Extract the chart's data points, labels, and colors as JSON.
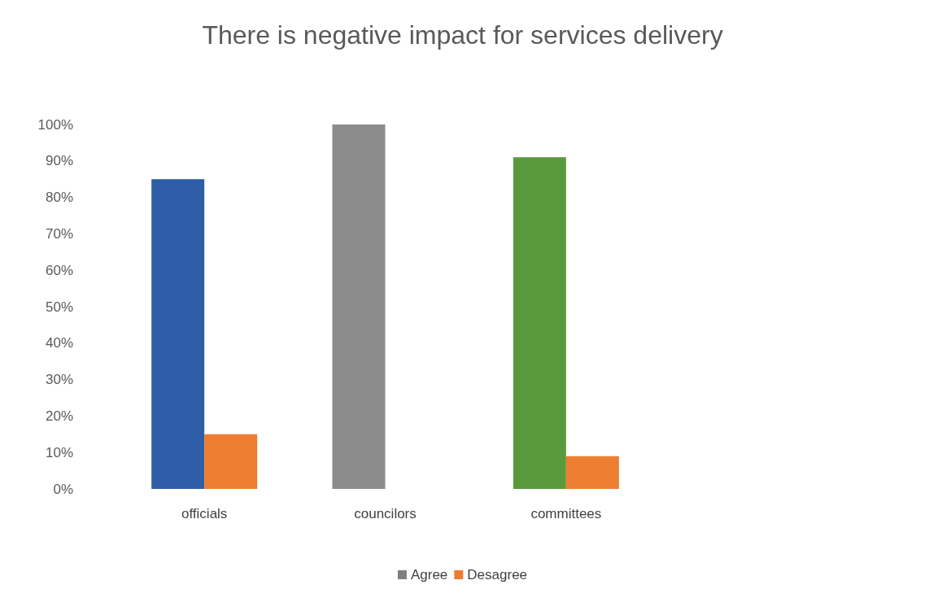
{
  "chart_data": {
    "type": "bar",
    "title": "There is negative impact for services delivery",
    "categories": [
      "officials",
      "councilors",
      "committees"
    ],
    "series": [
      {
        "name": "Agree",
        "color": "#7f7f7f",
        "colors": [
          "#2e5ea8",
          "#8c8c8c",
          "#5a9a3c"
        ],
        "values": [
          85,
          100,
          91
        ]
      },
      {
        "name": "Desagree",
        "color": "#ed7d31",
        "values": [
          15,
          0,
          9
        ]
      }
    ],
    "ylim": [
      0,
      100
    ],
    "yticks": [
      {
        "value": 0,
        "label": "0%"
      },
      {
        "value": 10,
        "label": "10%"
      },
      {
        "value": 20,
        "label": "20%"
      },
      {
        "value": 30,
        "label": "30%"
      },
      {
        "value": 40,
        "label": "40%"
      },
      {
        "value": 50,
        "label": "50%"
      },
      {
        "value": 60,
        "label": "60%"
      },
      {
        "value": 70,
        "label": "70%"
      },
      {
        "value": 80,
        "label": "80%"
      },
      {
        "value": 90,
        "label": "90%"
      },
      {
        "value": 100,
        "label": "100%"
      }
    ],
    "grid": false,
    "legend": "bottom"
  }
}
